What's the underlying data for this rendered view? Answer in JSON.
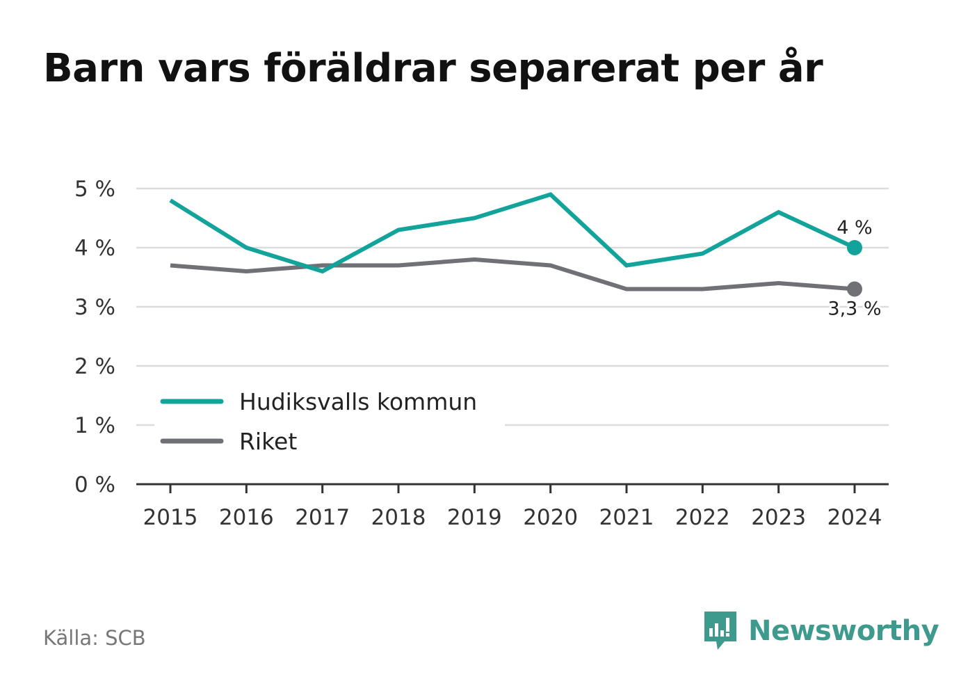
{
  "title": "Barn vars föräldrar separerat per år",
  "source": "Källa: SCB",
  "brand": {
    "name": "Newsworthy",
    "icon": "newsworthy-logo-icon"
  },
  "colors": {
    "hudiksvall": "#12a39a",
    "riket": "#707077",
    "grid": "#dcdcdc",
    "axis": "#333333",
    "brand": "#3f9a8e"
  },
  "chart_data": {
    "type": "line",
    "title": "Barn vars föräldrar separerat per år",
    "xlabel": "",
    "ylabel": "",
    "x": [
      "2015",
      "2016",
      "2017",
      "2018",
      "2019",
      "2020",
      "2021",
      "2022",
      "2023",
      "2024"
    ],
    "ylim": [
      0,
      5
    ],
    "yticks": [
      0,
      1,
      2,
      3,
      4,
      5
    ],
    "ytick_labels": [
      "0 %",
      "1 %",
      "2 %",
      "3 %",
      "4 %",
      "5 %"
    ],
    "grid": true,
    "legend_position": "bottom-left",
    "series": [
      {
        "name": "Hudiksvalls kommun",
        "color": "#12a39a",
        "values": [
          4.8,
          4.0,
          3.6,
          4.3,
          4.5,
          4.9,
          3.7,
          3.9,
          4.6,
          4.0
        ],
        "end_label": "4 %"
      },
      {
        "name": "Riket",
        "color": "#707077",
        "values": [
          3.7,
          3.6,
          3.7,
          3.7,
          3.8,
          3.7,
          3.3,
          3.3,
          3.4,
          3.3
        ],
        "end_label": "3,3 %"
      }
    ]
  }
}
